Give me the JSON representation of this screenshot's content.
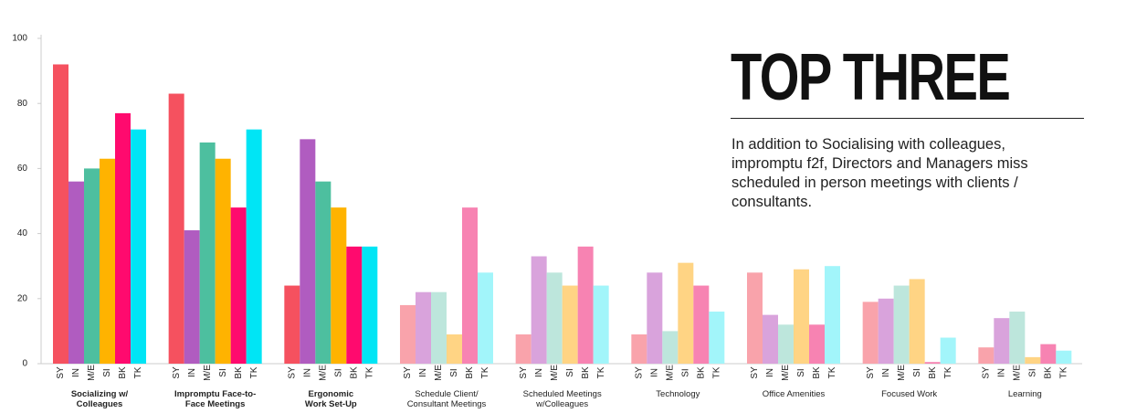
{
  "chart_data": {
    "type": "bar",
    "categories": [
      "Socializing w/\nColleagues",
      "Impromptu Face-to-\nFace Meetings",
      "Ergonomic\nWork Set-Up",
      "Schedule Client/\nConsultant Meetings",
      "Scheduled Meetings\nw/Colleagues",
      "Technology",
      "Office Amenities",
      "Focused Work",
      "Learning"
    ],
    "emphasized_categories": [
      0,
      1,
      2
    ],
    "series": [
      {
        "name": "SY",
        "color": "#f5515f",
        "light_color": "#f9a3ab",
        "values": [
          92,
          83,
          24,
          18,
          9,
          9,
          28,
          19,
          5
        ]
      },
      {
        "name": "IN",
        "color": "#b05cc0",
        "light_color": "#d9a3dc",
        "values": [
          56,
          41,
          69,
          22,
          33,
          28,
          15,
          20,
          14
        ]
      },
      {
        "name": "M/E",
        "color": "#4dbf9f",
        "light_color": "#bde6dc",
        "values": [
          60,
          68,
          56,
          22,
          28,
          10,
          12,
          24,
          16
        ]
      },
      {
        "name": "SI",
        "color": "#ffb300",
        "light_color": "#ffd484",
        "values": [
          63,
          63,
          48,
          9,
          24,
          31,
          29,
          26,
          2
        ]
      },
      {
        "name": "BK",
        "color": "#ff0a6e",
        "light_color": "#f783b2",
        "values": [
          77,
          48,
          36,
          48,
          36,
          24,
          12,
          0.5,
          6
        ]
      },
      {
        "name": "TK",
        "color": "#00e5f5",
        "light_color": "#a2f5fa",
        "values": [
          72,
          72,
          36,
          28,
          24,
          16,
          30,
          8,
          4
        ]
      }
    ],
    "ylim": [
      0,
      100
    ],
    "yticks": [
      0,
      20,
      40,
      60,
      80,
      100
    ],
    "grid": false
  },
  "panel": {
    "title": "TOP THREE",
    "text": "In addition to Socialising with colleagues, impromptu f2f, Directors and Managers miss scheduled in person meetings with clients / consultants."
  }
}
